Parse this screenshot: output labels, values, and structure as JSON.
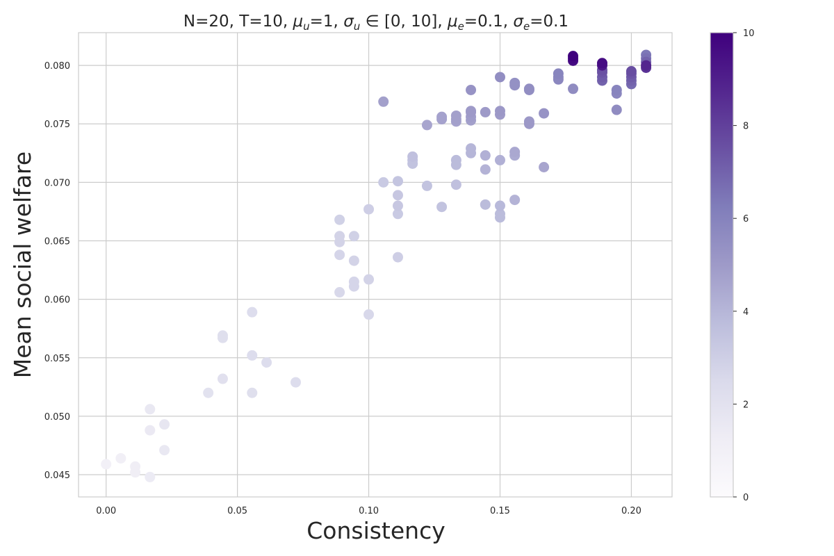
{
  "chart_data": {
    "type": "scatter",
    "title_parts": {
      "p1": "N=20, T=10, ",
      "mu_u_sym": "μ",
      "mu_u_sub": "u",
      "p2": "=1, ",
      "sigma_u_sym": "σ",
      "sigma_u_sub": "u",
      "p3": " ∈ [0, 10], ",
      "mu_e_sym": "μ",
      "mu_e_sub": "e",
      "p4": "=0.1, ",
      "sigma_e_sym": "σ",
      "sigma_e_sub": "e",
      "p5": "=0.1"
    },
    "xlabel": "Consistency",
    "ylabel": "Mean social welfare",
    "xlim": [
      -0.0105,
      0.2155
    ],
    "ylim": [
      0.0431,
      0.0828
    ],
    "xticks": [
      0.0,
      0.05,
      0.1,
      0.15,
      0.2
    ],
    "xtick_labels": [
      "0.00",
      "0.05",
      "0.10",
      "0.15",
      "0.20"
    ],
    "yticks": [
      0.045,
      0.05,
      0.055,
      0.06,
      0.065,
      0.07,
      0.075,
      0.08
    ],
    "ytick_labels": [
      "0.045",
      "0.050",
      "0.055",
      "0.060",
      "0.065",
      "0.070",
      "0.075",
      "0.080"
    ],
    "grid": true,
    "colorbar": {
      "range": [
        0,
        10
      ],
      "ticks": [
        0,
        2,
        4,
        6,
        8,
        10
      ],
      "tick_labels": [
        "0",
        "2",
        "4",
        "6",
        "8",
        "10"
      ],
      "colormap": "Purples",
      "stops": [
        "#fcfbfd",
        "#efedf5",
        "#dadaeb",
        "#bcbddc",
        "#9e9ac8",
        "#807dba",
        "#6a51a3",
        "#54278f",
        "#3f007d"
      ]
    },
    "points": [
      [
        0.0,
        0.0459,
        1.0
      ],
      [
        0.0056,
        0.0464,
        1.1
      ],
      [
        0.0111,
        0.0457,
        1.2
      ],
      [
        0.0111,
        0.0452,
        1.2
      ],
      [
        0.0167,
        0.0448,
        1.4
      ],
      [
        0.0167,
        0.0488,
        1.5
      ],
      [
        0.0167,
        0.0506,
        1.6
      ],
      [
        0.0222,
        0.0471,
        1.6
      ],
      [
        0.0222,
        0.0493,
        1.7
      ],
      [
        0.0389,
        0.052,
        2.0
      ],
      [
        0.0444,
        0.0532,
        2.1
      ],
      [
        0.0444,
        0.0567,
        2.2
      ],
      [
        0.0444,
        0.0569,
        2.2
      ],
      [
        0.0556,
        0.0589,
        2.3
      ],
      [
        0.0556,
        0.0552,
        2.3
      ],
      [
        0.0556,
        0.052,
        2.2
      ],
      [
        0.0611,
        0.0546,
        2.3
      ],
      [
        0.0722,
        0.0529,
        2.3
      ],
      [
        0.0889,
        0.0606,
        2.6
      ],
      [
        0.0889,
        0.0638,
        2.7
      ],
      [
        0.0889,
        0.0649,
        2.8
      ],
      [
        0.0889,
        0.0654,
        2.8
      ],
      [
        0.0889,
        0.0668,
        2.9
      ],
      [
        0.0944,
        0.0611,
        2.7
      ],
      [
        0.0944,
        0.0615,
        2.7
      ],
      [
        0.0944,
        0.0633,
        2.8
      ],
      [
        0.0944,
        0.0654,
        2.9
      ],
      [
        0.1,
        0.0587,
        2.6
      ],
      [
        0.1,
        0.0617,
        2.8
      ],
      [
        0.1,
        0.0677,
        3.0
      ],
      [
        0.1056,
        0.07,
        3.2
      ],
      [
        0.1056,
        0.0769,
        4.8
      ],
      [
        0.1111,
        0.0636,
        3.0
      ],
      [
        0.1111,
        0.0673,
        3.2
      ],
      [
        0.1111,
        0.068,
        3.3
      ],
      [
        0.1111,
        0.0689,
        3.3
      ],
      [
        0.1111,
        0.0701,
        3.4
      ],
      [
        0.1167,
        0.0716,
        3.5
      ],
      [
        0.1167,
        0.0719,
        3.5
      ],
      [
        0.1167,
        0.0722,
        3.6
      ],
      [
        0.1222,
        0.0697,
        3.5
      ],
      [
        0.1222,
        0.0749,
        4.6
      ],
      [
        0.1278,
        0.0679,
        3.5
      ],
      [
        0.1278,
        0.0754,
        4.7
      ],
      [
        0.1278,
        0.0756,
        4.7
      ],
      [
        0.1333,
        0.0698,
        3.6
      ],
      [
        0.1333,
        0.0715,
        3.8
      ],
      [
        0.1333,
        0.0719,
        3.8
      ],
      [
        0.1333,
        0.0752,
        4.7
      ],
      [
        0.1333,
        0.0754,
        4.8
      ],
      [
        0.1333,
        0.0757,
        4.8
      ],
      [
        0.1389,
        0.0725,
        4.0
      ],
      [
        0.1389,
        0.0729,
        4.0
      ],
      [
        0.1389,
        0.0753,
        4.8
      ],
      [
        0.1389,
        0.0756,
        4.9
      ],
      [
        0.1389,
        0.076,
        5.0
      ],
      [
        0.1389,
        0.0761,
        5.0
      ],
      [
        0.1389,
        0.0779,
        5.3
      ],
      [
        0.1444,
        0.0681,
        3.8
      ],
      [
        0.1444,
        0.0711,
        4.1
      ],
      [
        0.1444,
        0.0723,
        4.2
      ],
      [
        0.1444,
        0.076,
        5.0
      ],
      [
        0.15,
        0.067,
        3.8
      ],
      [
        0.15,
        0.0673,
        3.8
      ],
      [
        0.15,
        0.068,
        3.9
      ],
      [
        0.15,
        0.0719,
        4.2
      ],
      [
        0.15,
        0.0758,
        5.0
      ],
      [
        0.15,
        0.0761,
        5.1
      ],
      [
        0.15,
        0.079,
        5.5
      ],
      [
        0.1556,
        0.0685,
        4.1
      ],
      [
        0.1556,
        0.0723,
        4.4
      ],
      [
        0.1556,
        0.0726,
        4.5
      ],
      [
        0.1556,
        0.0783,
        5.4
      ],
      [
        0.1556,
        0.0785,
        5.4
      ],
      [
        0.1611,
        0.075,
        5.1
      ],
      [
        0.1611,
        0.0752,
        5.1
      ],
      [
        0.1611,
        0.0779,
        5.5
      ],
      [
        0.1611,
        0.078,
        5.5
      ],
      [
        0.1667,
        0.0713,
        4.6
      ],
      [
        0.1667,
        0.0759,
        5.3
      ],
      [
        0.1722,
        0.0788,
        5.8
      ],
      [
        0.1722,
        0.079,
        5.8
      ],
      [
        0.1722,
        0.0793,
        5.9
      ],
      [
        0.1778,
        0.078,
        5.6
      ],
      [
        0.1778,
        0.0804,
        9.6
      ],
      [
        0.1778,
        0.0806,
        9.8
      ],
      [
        0.1778,
        0.0808,
        10.0
      ],
      [
        0.1889,
        0.0787,
        7.0
      ],
      [
        0.1889,
        0.079,
        7.2
      ],
      [
        0.1889,
        0.0794,
        7.4
      ],
      [
        0.1889,
        0.0796,
        7.5
      ],
      [
        0.1889,
        0.08,
        9.3
      ],
      [
        0.1889,
        0.0802,
        9.6
      ],
      [
        0.1944,
        0.0762,
        5.6
      ],
      [
        0.1944,
        0.0776,
        5.8
      ],
      [
        0.1944,
        0.0779,
        5.9
      ],
      [
        0.2,
        0.0784,
        6.8
      ],
      [
        0.2,
        0.0787,
        7.0
      ],
      [
        0.2,
        0.079,
        7.2
      ],
      [
        0.2,
        0.0793,
        7.4
      ],
      [
        0.2,
        0.0795,
        7.6
      ],
      [
        0.2056,
        0.0798,
        8.4
      ],
      [
        0.2056,
        0.08,
        8.8
      ],
      [
        0.2056,
        0.0803,
        7.0
      ],
      [
        0.2056,
        0.0806,
        6.6
      ],
      [
        0.2056,
        0.0809,
        6.4
      ]
    ]
  }
}
